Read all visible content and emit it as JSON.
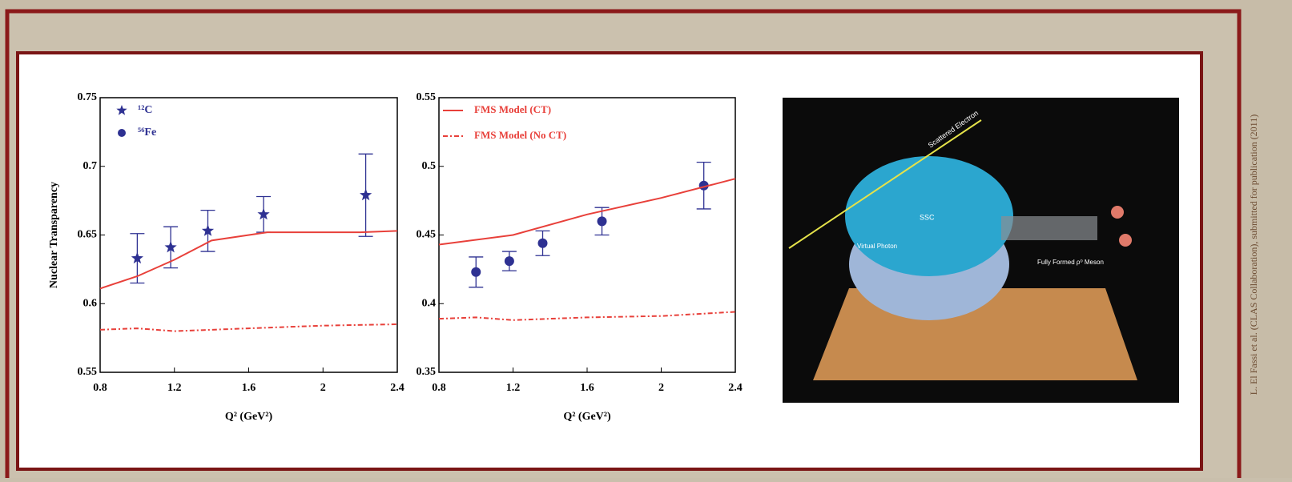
{
  "chart_data": [
    {
      "type": "line",
      "ylabel": "Nuclear Transparency",
      "xlabel": "Q² (GeV²)",
      "xlim": [
        0.8,
        2.4
      ],
      "xticks": [
        0.8,
        1.2,
        1.6,
        2,
        2.4
      ],
      "ylim": [
        0.55,
        0.75
      ],
      "yticks": [
        0.55,
        0.6,
        0.65,
        0.7,
        0.75
      ],
      "series": [
        {
          "name": "¹²C",
          "type": "scatter",
          "marker": "star",
          "color": "#2e3192",
          "x": [
            1.0,
            1.18,
            1.38,
            1.68,
            2.23
          ],
          "values": [
            0.633,
            0.641,
            0.653,
            0.665,
            0.679
          ],
          "errors": [
            0.018,
            0.015,
            0.015,
            0.013,
            0.03
          ]
        },
        {
          "type": "line",
          "dash": false,
          "color": "#e8403a",
          "x": [
            0.8,
            1.0,
            1.2,
            1.4,
            1.7,
            2.2,
            2.4
          ],
          "values": [
            0.611,
            0.62,
            0.632,
            0.646,
            0.652,
            0.652,
            0.653
          ]
        },
        {
          "type": "line",
          "dash": true,
          "color": "#e8403a",
          "x": [
            0.8,
            1.0,
            1.2,
            1.6,
            2.0,
            2.4
          ],
          "values": [
            0.581,
            0.582,
            0.58,
            0.582,
            0.584,
            0.585
          ]
        }
      ]
    },
    {
      "type": "line",
      "xlabel": "Q² (GeV²)",
      "xlim": [
        0.8,
        2.4
      ],
      "xticks": [
        0.8,
        1.2,
        1.6,
        2,
        2.4
      ],
      "ylim": [
        0.35,
        0.55
      ],
      "yticks": [
        0.35,
        0.4,
        0.45,
        0.5,
        0.55
      ],
      "series": [
        {
          "name": "⁵⁶Fe",
          "type": "scatter",
          "marker": "circle",
          "color": "#2e3192",
          "x": [
            1.0,
            1.18,
            1.36,
            1.68,
            2.23
          ],
          "values": [
            0.423,
            0.431,
            0.444,
            0.46,
            0.486
          ],
          "errors": [
            0.011,
            0.007,
            0.009,
            0.01,
            0.017
          ]
        },
        {
          "name": "FMS Model (CT)",
          "type": "line",
          "dash": false,
          "color": "#e8403a",
          "x": [
            0.8,
            1.2,
            1.6,
            2.0,
            2.4
          ],
          "values": [
            0.443,
            0.45,
            0.465,
            0.477,
            0.491
          ]
        },
        {
          "name": "FMS Model (No CT)",
          "type": "line",
          "dash": true,
          "color": "#e8403a",
          "x": [
            0.8,
            1.0,
            1.2,
            1.6,
            2.0,
            2.4
          ],
          "values": [
            0.389,
            0.39,
            0.388,
            0.39,
            0.391,
            0.394
          ]
        }
      ]
    }
  ],
  "illustration": {
    "electron": "Scattered Electron",
    "ssc": "SSC",
    "photon": "Virtual Photon",
    "meson": "Fully Formed ρ⁰ Meson"
  },
  "credit": "L. El Fassi et al. (CLAS Collaboration), submitted for publication (2011)"
}
